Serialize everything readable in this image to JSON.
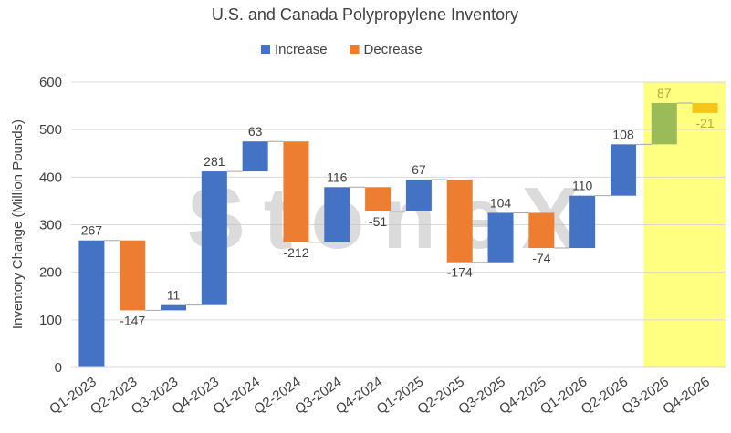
{
  "chart_data": {
    "type": "waterfall",
    "title": "U.S. and Canada Polypropylene Inventory",
    "y_label": "Inventory Change (Million Pounds)",
    "watermark": "StoneX",
    "legend": [
      {
        "name": "Increase",
        "color": "#4472c4"
      },
      {
        "name": "Decrease",
        "color": "#ed7d31"
      }
    ],
    "categories": [
      "Q1-2023",
      "Q2-2023",
      "Q3-2023",
      "Q4-2023",
      "Q1-2024",
      "Q2-2024",
      "Q3-2024",
      "Q4-2024",
      "Q1-2025",
      "Q2-2025",
      "Q3-2025",
      "Q4-2025",
      "Q1-2026",
      "Q2-2026",
      "Q3-2026",
      "Q4-2026"
    ],
    "values": [
      267,
      -147,
      11,
      281,
      63,
      -212,
      116,
      -51,
      67,
      -174,
      104,
      -74,
      110,
      108,
      87,
      -21
    ],
    "highlight": {
      "from": 14,
      "band_color": "#ffff80",
      "increase_color": "#9bbb59",
      "decrease_color": "#f5c518",
      "label_color": "#b8a640"
    },
    "ylim": [
      0,
      600
    ],
    "yticks": [
      0,
      100,
      200,
      300,
      400,
      500,
      600
    ],
    "grid": true
  }
}
